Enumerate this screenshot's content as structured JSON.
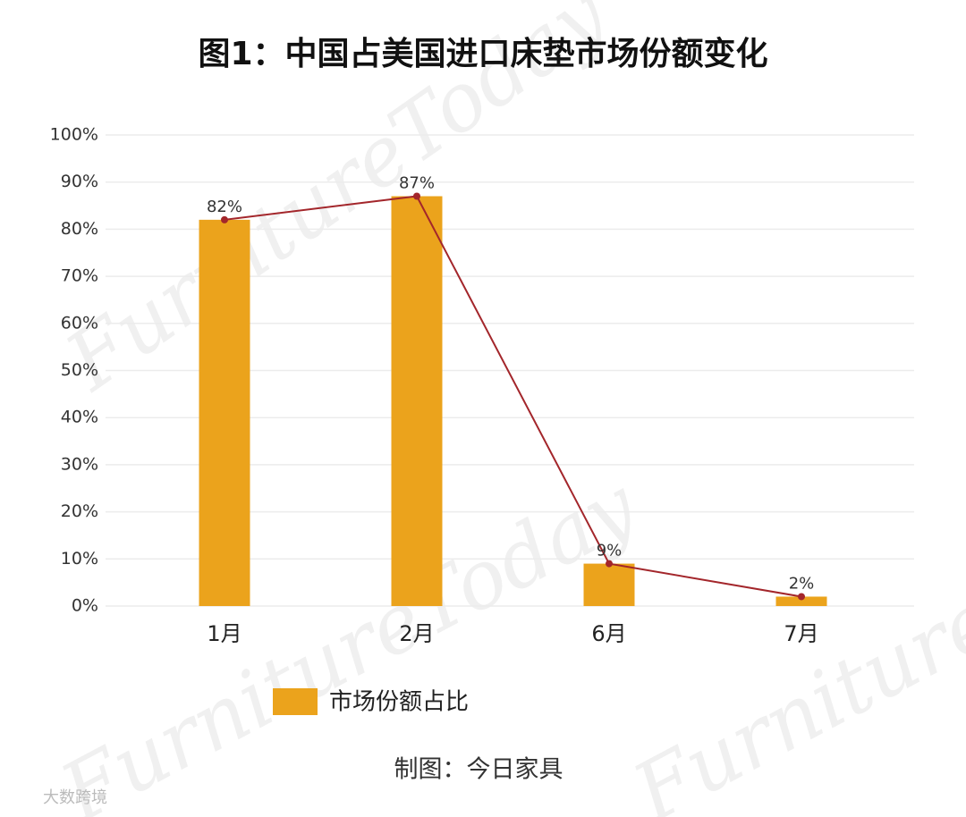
{
  "chart_data": {
    "type": "bar",
    "title": "图1：中国占美国进口床垫市场份额变化",
    "categories": [
      "1月",
      "2月",
      "6月",
      "7月"
    ],
    "series": [
      {
        "name": "市场份额占比",
        "color": "#eba31c",
        "values": [
          82,
          87,
          9,
          2
        ],
        "value_labels": [
          "82%",
          "87%",
          "9%",
          "2%"
        ]
      }
    ],
    "line_overlay": true,
    "line_color": "#a3262b",
    "ylim": [
      0,
      100
    ],
    "yticks": [
      {
        "value": 0,
        "label": "0%"
      },
      {
        "value": 10,
        "label": "10%"
      },
      {
        "value": 20,
        "label": "20%"
      },
      {
        "value": 30,
        "label": "30%"
      },
      {
        "value": 40,
        "label": "40%"
      },
      {
        "value": 50,
        "label": "50%"
      },
      {
        "value": 60,
        "label": "60%"
      },
      {
        "value": 70,
        "label": "70%"
      },
      {
        "value": 80,
        "label": "80%"
      },
      {
        "value": 90,
        "label": "90%"
      },
      {
        "value": 100,
        "label": "100%"
      }
    ],
    "grid": true,
    "legend": "bottom",
    "footer": "制图：今日家具",
    "watermark": "FurnitureToday",
    "logo": "大数跨境"
  }
}
